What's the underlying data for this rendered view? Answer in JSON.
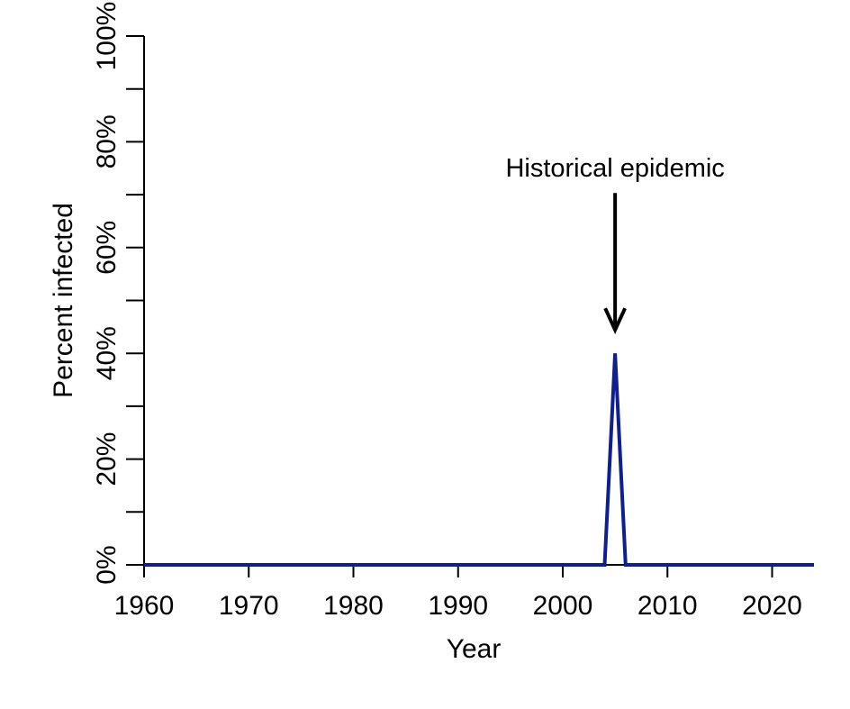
{
  "chart_data": {
    "type": "line",
    "title": "",
    "xlabel": "Year",
    "ylabel": "Percent infected",
    "xlim": [
      1960,
      2024
    ],
    "ylim": [
      0,
      100
    ],
    "x_ticks": [
      1960,
      1970,
      1980,
      1990,
      2000,
      2010,
      2020
    ],
    "x_tick_labels": [
      "1960",
      "1970",
      "1980",
      "1990",
      "2000",
      "2010",
      "2020"
    ],
    "y_major_ticks": [
      0,
      20,
      40,
      60,
      80,
      100
    ],
    "y_tick_labels": [
      "0%",
      "20%",
      "40%",
      "60%",
      "80%",
      "100%"
    ],
    "y_minor_ticks": [
      10,
      30,
      50,
      70,
      90
    ],
    "grid": false,
    "series": [
      {
        "color": "#0f1f8f",
        "x": [
          1960,
          2004,
          2005,
          2006,
          2024
        ],
        "y": [
          0,
          0,
          40,
          0,
          0
        ]
      }
    ],
    "annotations": [
      {
        "text": "Historical epidemic",
        "x": 2005,
        "y": 40,
        "arrow": true
      }
    ]
  }
}
